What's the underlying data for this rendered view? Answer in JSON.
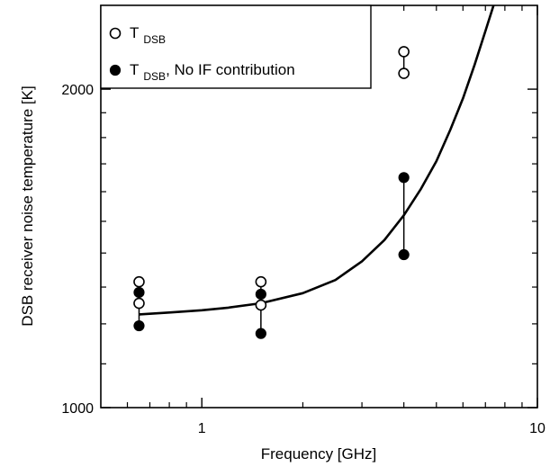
{
  "chart_data": {
    "type": "scatter",
    "xlabel": "Frequency [GHz]",
    "ylabel": "DSB receiver noise temperature  [K]",
    "x_scale": "log",
    "y_scale": "log",
    "xlim": [
      0.5,
      10
    ],
    "ylim": [
      1000,
      2400
    ],
    "x_ticks": [
      {
        "value": 1,
        "label": "1"
      },
      {
        "value": 10,
        "label": "10"
      }
    ],
    "y_ticks": [
      {
        "value": 1000,
        "label": "1000"
      },
      {
        "value": 2000,
        "label": "2000"
      }
    ],
    "legend": {
      "placement": "top-left",
      "entries": [
        {
          "marker": "open-circle",
          "label_main": "T",
          "label_sub": "DSB",
          "label_suffix": ""
        },
        {
          "marker": "filled-circle",
          "label_main": "T",
          "label_sub": "DSB",
          "label_suffix": ",  No IF contribution"
        }
      ]
    },
    "series": [
      {
        "marker": "open-circle",
        "points": [
          {
            "x": 0.65,
            "y": 1315
          },
          {
            "x": 0.65,
            "y": 1255
          },
          {
            "x": 1.5,
            "y": 1315
          },
          {
            "x": 1.5,
            "y": 1250
          },
          {
            "x": 4.0,
            "y": 2170
          },
          {
            "x": 4.0,
            "y": 2070
          }
        ]
      },
      {
        "marker": "filled-circle",
        "points": [
          {
            "x": 0.65,
            "y": 1285
          },
          {
            "x": 0.65,
            "y": 1195
          },
          {
            "x": 1.5,
            "y": 1280
          },
          {
            "x": 1.5,
            "y": 1175
          },
          {
            "x": 4.0,
            "y": 1650
          },
          {
            "x": 4.0,
            "y": 1395
          }
        ]
      }
    ],
    "error_bars": [
      {
        "x": 0.65,
        "ylow": 1195,
        "yhigh": 1315
      },
      {
        "x": 1.5,
        "ylow": 1175,
        "yhigh": 1315
      },
      {
        "x": 4.0,
        "ylow": 1395,
        "yhigh": 1650
      },
      {
        "x": 4.0,
        "ylow": 2070,
        "yhigh": 2170
      }
    ],
    "curve": {
      "points": [
        {
          "x": 0.65,
          "y": 1225
        },
        {
          "x": 0.8,
          "y": 1230
        },
        {
          "x": 1.0,
          "y": 1236
        },
        {
          "x": 1.2,
          "y": 1243
        },
        {
          "x": 1.5,
          "y": 1255
        },
        {
          "x": 2.0,
          "y": 1283
        },
        {
          "x": 2.5,
          "y": 1320
        },
        {
          "x": 3.0,
          "y": 1375
        },
        {
          "x": 3.5,
          "y": 1440
        },
        {
          "x": 4.0,
          "y": 1520
        },
        {
          "x": 4.5,
          "y": 1610
        },
        {
          "x": 5.0,
          "y": 1710
        },
        {
          "x": 5.5,
          "y": 1830
        },
        {
          "x": 6.0,
          "y": 1960
        },
        {
          "x": 6.5,
          "y": 2110
        },
        {
          "x": 7.0,
          "y": 2270
        },
        {
          "x": 7.4,
          "y": 2400
        }
      ]
    }
  }
}
